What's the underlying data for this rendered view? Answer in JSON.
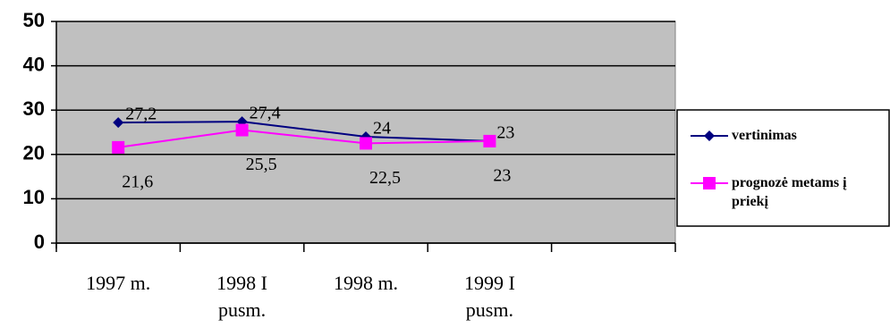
{
  "chart_data": {
    "type": "line",
    "categories": [
      "1997 m.",
      "1998 I pusm.",
      "1998 m.",
      "1999 I pusm.",
      null
    ],
    "series": [
      {
        "name": "vertinimas",
        "color": "#000080",
        "values": [
          27.2,
          27.4,
          24,
          23,
          null
        ],
        "value_labels": [
          "27,2",
          "27,4",
          "24",
          "23",
          null
        ]
      },
      {
        "name": "prognozė metams į priekį",
        "color": "#ff00ff",
        "values": [
          21.6,
          25.5,
          22.5,
          23,
          null
        ],
        "value_labels": [
          "21,6",
          "25,5",
          "22,5",
          "23",
          null
        ]
      }
    ],
    "ylim": [
      0,
      50
    ],
    "yticks": [
      0,
      10,
      20,
      30,
      40,
      50
    ],
    "grid": true,
    "legend": "right"
  }
}
